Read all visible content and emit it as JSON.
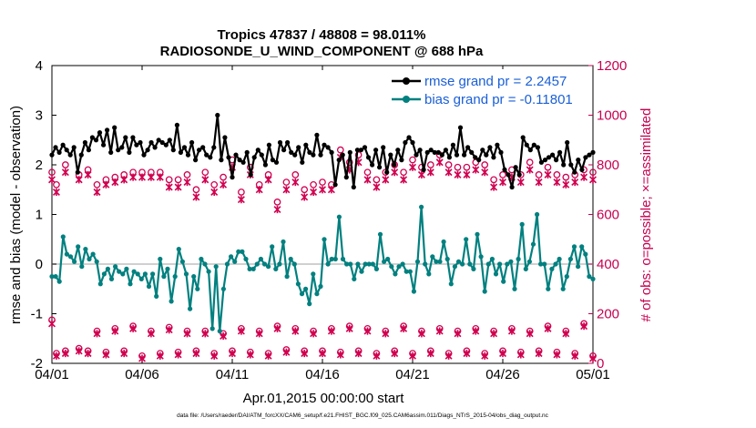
{
  "chart_data": {
    "type": "line",
    "title": "Tropics 47837 / 48808 = 98.011%",
    "subtitle": "RADIOSONDE_U_WIND_COMPONENT @ 688 hPa",
    "xlabel": "Apr.01,2015 00:00:00 start",
    "ylabel": "rmse and bias (model - observation)",
    "ylabel_right": "# of obs: o=possible; ×=assimilated",
    "xlim": [
      0,
      30
    ],
    "ylim": [
      -2,
      4
    ],
    "ylim_right": [
      0,
      1200
    ],
    "x_tick_labels": [
      {
        "x": 0,
        "label": "04/01"
      },
      {
        "x": 5,
        "label": "04/06"
      },
      {
        "x": 10,
        "label": "04/11"
      },
      {
        "x": 15,
        "label": "04/16"
      },
      {
        "x": 20,
        "label": "04/21"
      },
      {
        "x": 25,
        "label": "04/26"
      },
      {
        "x": 30,
        "label": "05/01"
      }
    ],
    "y_ticks": [
      -2,
      -1,
      0,
      1,
      2,
      3,
      4
    ],
    "y_ticks_right": [
      0,
      200,
      400,
      600,
      800,
      1000,
      1200
    ],
    "zero_line": true,
    "colors": {
      "rmse": "#000000",
      "bias": "#00807f",
      "obs": "#d0004f",
      "legend_text": "#1a5fd6",
      "right_axis": "#c8004f",
      "zero_line": "#c0c0c0"
    },
    "series": [
      {
        "name": "rmse",
        "legend": "rmse grand pr = 2.2457",
        "axis": "left",
        "values": [
          2.2,
          2.35,
          2.25,
          2.4,
          2.3,
          2.2,
          2.35,
          1.85,
          2.2,
          2.45,
          2.3,
          2.55,
          2.5,
          2.65,
          2.4,
          2.7,
          2.25,
          2.75,
          2.3,
          2.35,
          2.55,
          2.25,
          2.55,
          2.4,
          2.45,
          2.2,
          2.3,
          2.45,
          2.35,
          2.5,
          2.45,
          2.4,
          2.5,
          2.3,
          2.8,
          2.25,
          2.35,
          2.2,
          2.45,
          2.1,
          2.3,
          2.35,
          2.2,
          2.15,
          2.35,
          3.0,
          2.1,
          2.55,
          2.15,
          1.75,
          2.2,
          2.1,
          2.05,
          2.25,
          1.8,
          2.15,
          2.3,
          2.2,
          2.0,
          2.4,
          2.1,
          2.05,
          2.45,
          2.3,
          2.45,
          2.25,
          2.2,
          2.35,
          2.05,
          2.4,
          2.25,
          2.2,
          2.6,
          2.2,
          2.4,
          2.35,
          2.25,
          1.6,
          2.1,
          2.2,
          1.75,
          2.25,
          1.55,
          2.3,
          2.3,
          2.35,
          2.15,
          2.0,
          2.3,
          1.95,
          2.35,
          1.85,
          2.2,
          2.0,
          2.3,
          2.1,
          2.45,
          2.55,
          2.45,
          2.2,
          2.3,
          1.9,
          2.25,
          2.3,
          2.25,
          2.25,
          2.2,
          2.3,
          2.15,
          2.4,
          2.2,
          2.75,
          2.2,
          2.35,
          2.25,
          2.15,
          2.1,
          2.3,
          2.2,
          2.35,
          2.15,
          2.4,
          2.25,
          1.9,
          1.8,
          1.55,
          1.95,
          1.8,
          2.55,
          2.4,
          2.3,
          2.4,
          2.35,
          2.05,
          2.1,
          2.15,
          2.2,
          2.1,
          2.25,
          2.0,
          2.45,
          2.0,
          1.85,
          2.1,
          1.9,
          2.15,
          2.2,
          2.25
        ]
      },
      {
        "name": "bias",
        "legend": "bias grand pr = -0.11801",
        "axis": "left",
        "values": [
          -0.25,
          -0.25,
          -0.35,
          0.55,
          0.2,
          0.15,
          0.05,
          0.35,
          -0.05,
          0.3,
          0.1,
          0.2,
          0.05,
          -0.4,
          -0.2,
          -0.1,
          -0.3,
          -0.05,
          -0.15,
          -0.2,
          -0.1,
          -0.4,
          -0.15,
          -0.2,
          -0.3,
          -0.2,
          -0.45,
          -0.2,
          -0.65,
          0.1,
          -0.25,
          -0.1,
          -0.75,
          -0.25,
          0.3,
          0.05,
          -0.2,
          -0.9,
          -0.25,
          -0.5,
          0.1,
          0.0,
          -0.15,
          -1.3,
          -0.05,
          -1.35,
          -0.5,
          0.0,
          0.15,
          0.05,
          0.25,
          0.25,
          0.1,
          -0.1,
          -0.1,
          0.0,
          0.1,
          0.0,
          -0.05,
          0.35,
          -0.1,
          0.0,
          0.45,
          -0.25,
          0.1,
          0.0,
          -0.4,
          -0.6,
          -0.5,
          -0.8,
          -0.2,
          -0.6,
          -0.45,
          0.5,
          0.0,
          0.1,
          0.1,
          0.95,
          0.1,
          0.0,
          0.0,
          -0.3,
          0.0,
          -0.15,
          0.0,
          0.0,
          0.0,
          -0.1,
          0.6,
          0.05,
          0.1,
          -0.05,
          -0.2,
          -0.05,
          0.0,
          -0.15,
          -0.15,
          -0.55,
          0.05,
          1.15,
          0.0,
          -0.2,
          0.15,
          0.05,
          0.05,
          0.45,
          0.1,
          -0.4,
          -0.05,
          0.05,
          0.0,
          0.5,
          0.0,
          -0.1,
          0.6,
          0.15,
          -0.55,
          0.0,
          0.1,
          -0.2,
          0.0,
          -0.35,
          0.0,
          0.05,
          -0.5,
          0.1,
          0.8,
          -0.1,
          0.05,
          0.4,
          1.0,
          0.0,
          0.0,
          -0.5,
          -0.1,
          0.0,
          0.1,
          -0.5,
          -0.25,
          0.1,
          0.35,
          -0.05,
          0.35,
          0.2,
          -0.25,
          -0.3
        ]
      }
    ],
    "obs_groups": [
      {
        "name": "possible",
        "marker": "o",
        "axis": "right"
      },
      {
        "name": "assimilated",
        "marker": "×",
        "axis": "right"
      }
    ],
    "obs_counts": {
      "x": [
        0,
        0.25,
        0.75,
        1.5,
        2.0,
        2.5,
        3.0,
        3.5,
        4.0,
        4.5,
        5.0,
        5.5,
        6.0,
        6.5,
        7.0,
        7.5,
        8.0,
        8.5,
        9.0,
        9.5,
        10.0,
        10.5,
        11.0,
        11.5,
        12.0,
        12.5,
        13.0,
        13.5,
        14.0,
        14.5,
        15.0,
        15.5,
        16.0,
        16.5,
        17.0,
        17.5,
        18.0,
        18.5,
        19.0,
        19.5,
        20.0,
        20.5,
        21.0,
        21.5,
        22.0,
        22.5,
        23.0,
        23.5,
        24.0,
        24.5,
        25.0,
        25.5,
        26.0,
        26.5,
        27.0,
        27.5,
        28.0,
        28.5,
        29.0,
        29.5,
        30.0
      ],
      "high_possible": [
        770,
        720,
        800,
        760,
        780,
        720,
        740,
        750,
        760,
        770,
        770,
        770,
        770,
        740,
        740,
        760,
        700,
        770,
        720,
        750,
        820,
        690,
        790,
        720,
        760,
        650,
        730,
        760,
        700,
        720,
        730,
        720,
        860,
        810,
        840,
        770,
        740,
        770,
        800,
        770,
        820,
        790,
        800,
        840,
        800,
        790,
        790,
        810,
        800,
        740,
        760,
        780,
        760,
        810,
        760,
        790,
        760,
        750,
        760,
        780,
        770
      ],
      "high_assimilated": [
        740,
        690,
        770,
        740,
        760,
        690,
        720,
        730,
        740,
        750,
        750,
        750,
        750,
        710,
        710,
        730,
        670,
        740,
        690,
        720,
        790,
        660,
        760,
        700,
        740,
        620,
        700,
        730,
        670,
        690,
        700,
        700,
        830,
        780,
        810,
        740,
        710,
        740,
        770,
        740,
        790,
        760,
        770,
        810,
        770,
        760,
        760,
        780,
        770,
        710,
        730,
        750,
        730,
        780,
        730,
        760,
        730,
        720,
        730,
        750,
        740
      ],
      "low_possible": [
        175,
        40,
        50,
        60,
        50,
        130,
        45,
        140,
        50,
        150,
        30,
        130,
        40,
        145,
        45,
        130,
        50,
        130,
        40,
        120,
        50,
        140,
        45,
        130,
        40,
        150,
        55,
        140,
        50,
        130,
        50,
        140,
        45,
        150,
        50,
        140,
        40,
        130,
        50,
        150,
        40,
        130,
        50,
        140,
        40,
        130,
        50,
        140,
        40,
        130,
        50,
        140,
        45,
        130,
        50,
        150,
        45,
        130,
        40,
        160,
        30
      ],
      "low_assimilated": [
        160,
        30,
        40,
        50,
        40,
        120,
        35,
        130,
        40,
        140,
        20,
        120,
        30,
        135,
        35,
        120,
        40,
        120,
        30,
        110,
        40,
        130,
        35,
        120,
        30,
        140,
        45,
        130,
        40,
        120,
        40,
        130,
        35,
        140,
        40,
        130,
        30,
        120,
        40,
        140,
        30,
        120,
        40,
        130,
        30,
        120,
        40,
        130,
        30,
        120,
        40,
        130,
        35,
        120,
        40,
        140,
        35,
        120,
        30,
        150,
        20
      ]
    }
  },
  "footer": {
    "text": "data file: /Users/raeder/DAI/ATM_forcXX/CAM6_setup/f.e21.FHIST_BGC.f09_025.CAM6assim.011/Diags_NTrS_2015-04/obs_diag_output.nc"
  }
}
